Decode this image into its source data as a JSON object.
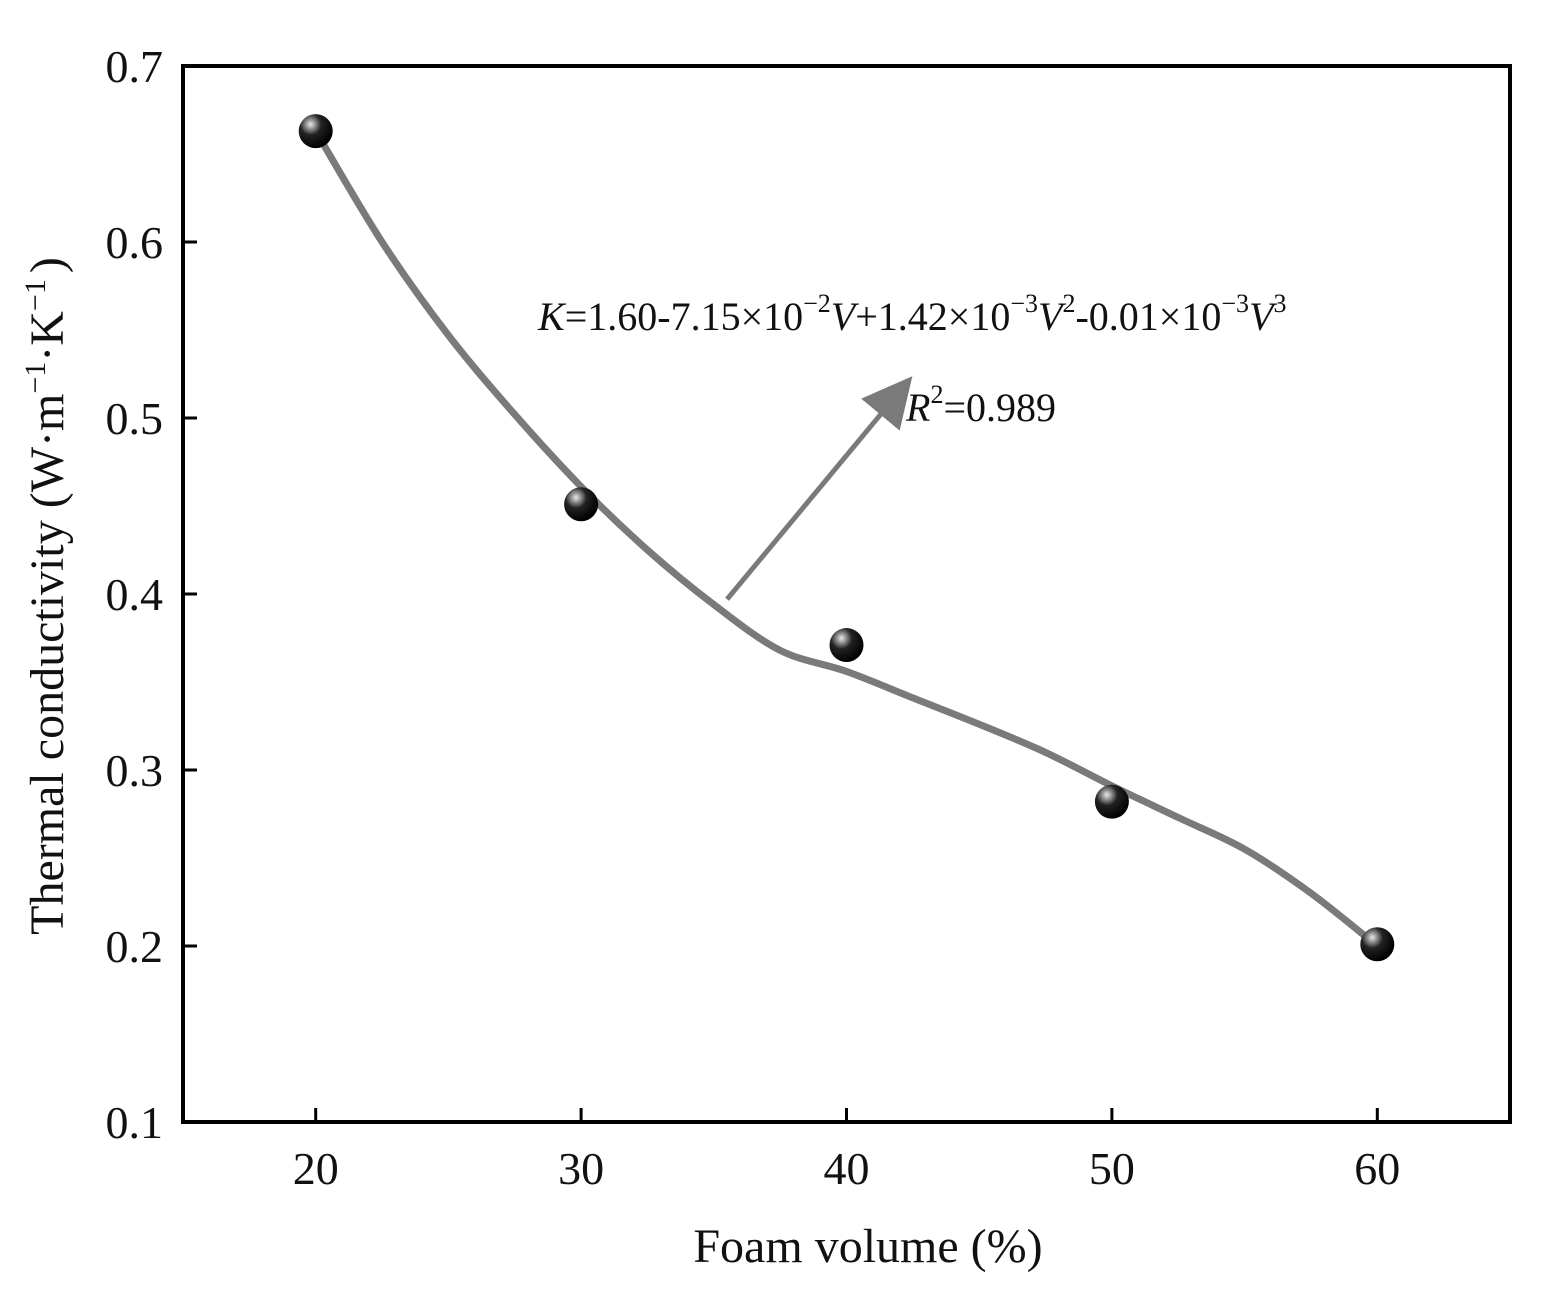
{
  "chart_data": {
    "type": "scatter",
    "xlabel": "Foam volume (%)",
    "ylabel_main": "Thermal conductivity (W·m",
    "ylabel_sup1": "−1",
    "ylabel_mid": "·K",
    "ylabel_sup2": "−1",
    "ylabel_end": ")",
    "xlim": [
      15,
      65
    ],
    "ylim": [
      0.1,
      0.7
    ],
    "x_ticks": [
      20,
      30,
      40,
      50,
      60
    ],
    "y_ticks": [
      0.1,
      0.2,
      0.3,
      0.4,
      0.5,
      0.6,
      0.7
    ],
    "x_tick_labels": [
      "20",
      "30",
      "40",
      "50",
      "60"
    ],
    "y_tick_labels": [
      "0.1",
      "0.2",
      "0.3",
      "0.4",
      "0.5",
      "0.6",
      "0.7"
    ],
    "points": [
      {
        "x": 20,
        "y": 0.663
      },
      {
        "x": 30,
        "y": 0.451
      },
      {
        "x": 40,
        "y": 0.371
      },
      {
        "x": 50,
        "y": 0.282
      },
      {
        "x": 60,
        "y": 0.201
      }
    ],
    "fit_curve": [
      {
        "x": 20,
        "y": 0.663
      },
      {
        "x": 22.5,
        "y": 0.6
      },
      {
        "x": 25,
        "y": 0.547
      },
      {
        "x": 27.5,
        "y": 0.502
      },
      {
        "x": 30,
        "y": 0.461
      },
      {
        "x": 32.5,
        "y": 0.425
      },
      {
        "x": 35,
        "y": 0.394
      },
      {
        "x": 37.5,
        "y": 0.368
      },
      {
        "x": 40,
        "y": 0.356
      },
      {
        "x": 42.5,
        "y": 0.341
      },
      {
        "x": 45,
        "y": 0.326
      },
      {
        "x": 47.5,
        "y": 0.31
      },
      {
        "x": 50,
        "y": 0.291
      },
      {
        "x": 52.5,
        "y": 0.273
      },
      {
        "x": 55,
        "y": 0.255
      },
      {
        "x": 57.5,
        "y": 0.23
      },
      {
        "x": 60,
        "y": 0.2
      }
    ],
    "equation": {
      "K": "K",
      "p1": "=1.60-7.15×10",
      "e1": "−2",
      "V1": "V",
      "p2": "+1.42×10",
      "e2": "−3",
      "V2": "V",
      "s2": "2",
      "p3": "-0.01×10",
      "e3": "−3",
      "V3": "V",
      "s3": "3"
    },
    "r2": {
      "R": "R",
      "sup": "2",
      "value": "=0.989"
    },
    "arrow": {
      "from_x": 35.5,
      "from_y": 0.397,
      "to_x": 42,
      "to_y": 0.515
    },
    "colors": {
      "curve": "#7a7a7a",
      "marker": "#000000",
      "highlight": "#d8d8d8",
      "axis": "#000000"
    }
  }
}
